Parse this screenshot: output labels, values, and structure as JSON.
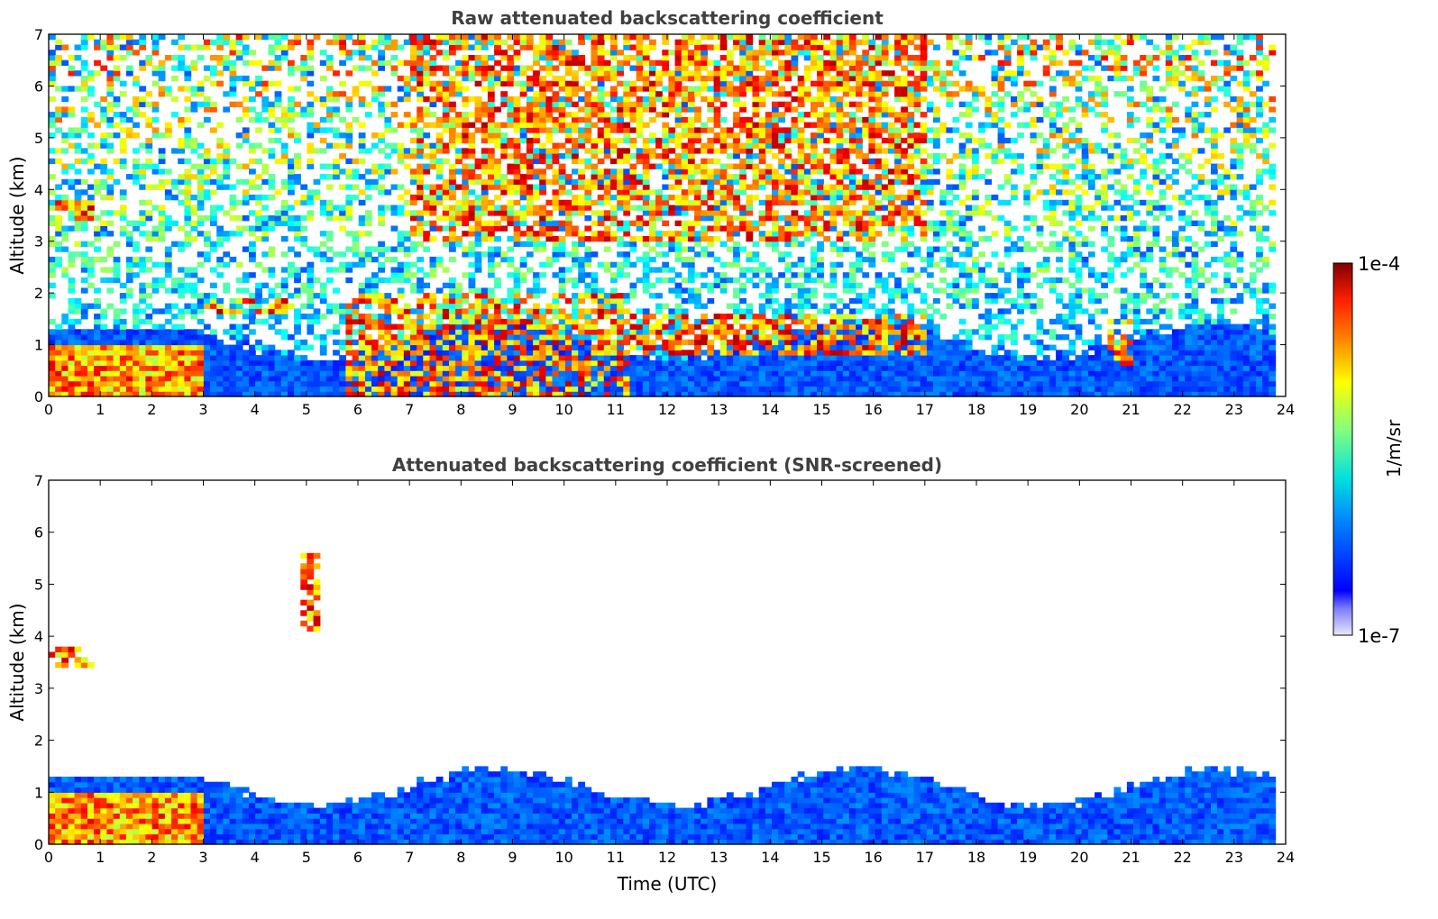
{
  "chart_data": [
    {
      "type": "heatmap",
      "title": "Raw attenuated backscattering coefficient",
      "xlabel": "",
      "ylabel": "Altitude (km)",
      "xlim": [
        0,
        24
      ],
      "ylim": [
        0,
        7
      ],
      "xticks": [
        "0",
        "1",
        "2",
        "3",
        "4",
        "5",
        "6",
        "7",
        "8",
        "9",
        "10",
        "11",
        "12",
        "13",
        "14",
        "15",
        "16",
        "17",
        "18",
        "19",
        "20",
        "21",
        "22",
        "23",
        "24"
      ],
      "yticks": [
        "0",
        "1",
        "2",
        "3",
        "4",
        "5",
        "6",
        "7"
      ],
      "data_end_time": 23.8,
      "features": [
        {
          "kind": "boundary_layer",
          "t_start": 0.0,
          "t_end": 3.0,
          "top_km": 1.3
        },
        {
          "kind": "cloud",
          "t_start": 0.0,
          "t_end": 0.9,
          "base_km": 3.45,
          "top_km": 3.75
        },
        {
          "kind": "cloud",
          "t_start": 3.0,
          "t_end": 4.8,
          "base_km": 1.6,
          "top_km": 1.85
        },
        {
          "kind": "cloud",
          "t_start": 5.7,
          "t_end": 11.3,
          "base_km": 0.0,
          "top_km": 2.0
        },
        {
          "kind": "cloud",
          "t_start": 11.3,
          "t_end": 17.0,
          "base_km": 0.8,
          "top_km": 1.6
        },
        {
          "kind": "cloud",
          "t_start": 20.5,
          "t_end": 21.0,
          "base_km": 0.6,
          "top_km": 1.45
        }
      ]
    },
    {
      "type": "heatmap",
      "title": "Attenuated backscattering coefficient (SNR-screened)",
      "xlabel": "Time (UTC)",
      "ylabel": "Altitude (km)",
      "xlim": [
        0,
        24
      ],
      "ylim": [
        0,
        7
      ],
      "xticks": [
        "0",
        "1",
        "2",
        "3",
        "4",
        "5",
        "6",
        "7",
        "8",
        "9",
        "10",
        "11",
        "12",
        "13",
        "14",
        "15",
        "16",
        "17",
        "18",
        "19",
        "20",
        "21",
        "22",
        "23",
        "24"
      ],
      "yticks": [
        "0",
        "1",
        "2",
        "3",
        "4",
        "5",
        "6",
        "7"
      ],
      "data_end_time": 23.8,
      "features": [
        {
          "kind": "boundary_layer",
          "t_start": 0.0,
          "t_end": 3.0,
          "top_km": 1.3
        },
        {
          "kind": "cloud",
          "t_start": 0.0,
          "t_end": 0.9,
          "base_km": 3.45,
          "top_km": 3.75
        },
        {
          "kind": "aerosol_layer",
          "t_start": 4.9,
          "t_end": 5.3,
          "base_km": 4.1,
          "top_km": 5.6
        },
        {
          "kind": "boundary_layer",
          "t_start": 4.8,
          "t_end": 23.8,
          "top_km": 1.2
        }
      ]
    }
  ],
  "colorbar": {
    "label": "1/m/sr",
    "max_label": "1e-4",
    "min_label": "1e-7",
    "scale": "log",
    "colormap": "jet"
  }
}
